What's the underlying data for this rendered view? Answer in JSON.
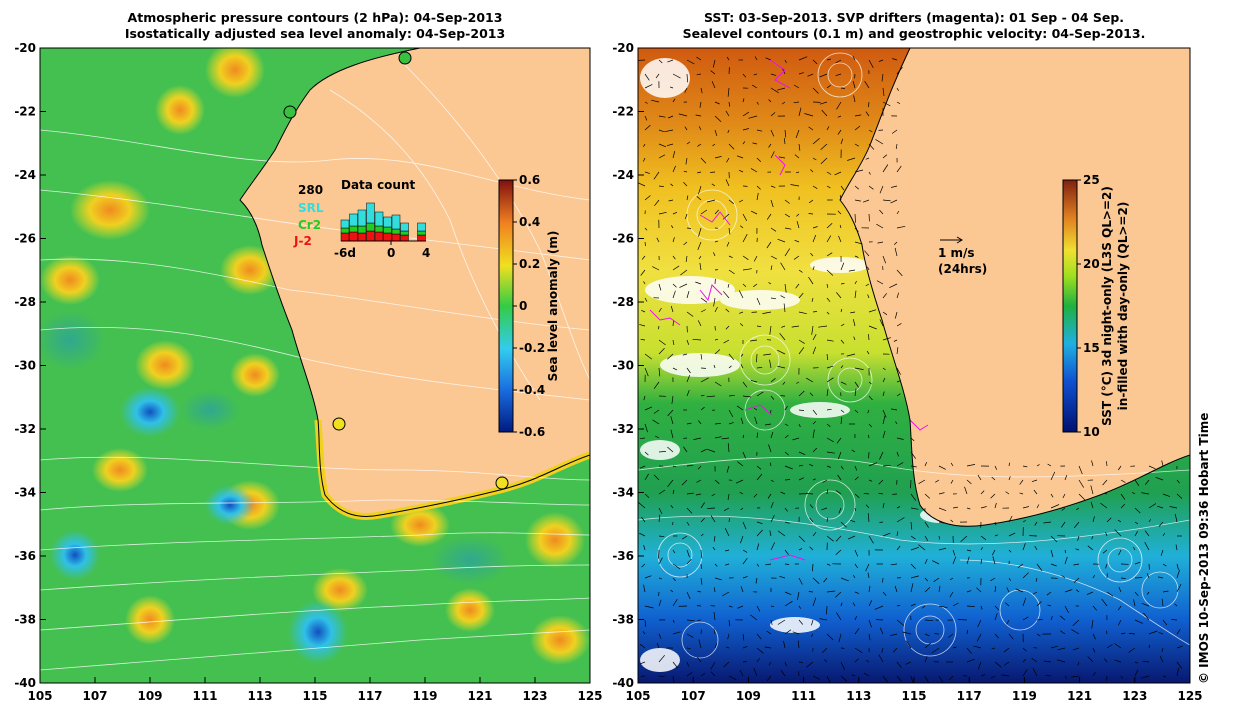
{
  "left_panel": {
    "title_line1": "Atmospheric pressure contours (2 hPa): 04-Sep-2013",
    "title_line2": "Isostatically adjusted sea level anomaly: 04-Sep-2013",
    "x_ticks": [
      "105",
      "107",
      "109",
      "111",
      "113",
      "115",
      "117",
      "119",
      "121",
      "123",
      "125"
    ],
    "y_ticks": [
      "-20",
      "-22",
      "-24",
      "-26",
      "-28",
      "-30",
      "-32",
      "-34",
      "-36",
      "-38",
      "-40"
    ],
    "colorbar": {
      "label": "Sea level anomaly (m)",
      "ticks": [
        "0.6",
        "0.4",
        "0.2",
        "0",
        "-0.2",
        "-0.4",
        "-0.6"
      ]
    },
    "inset": {
      "title": "Data count",
      "total": "280",
      "legend": [
        {
          "name": "SRL",
          "color": "#33dddd"
        },
        {
          "name": "Cr2",
          "color": "#22cc22"
        },
        {
          "name": "J-2",
          "color": "#ee1111"
        }
      ],
      "x_ticks": [
        "-6d",
        "0",
        "4"
      ]
    }
  },
  "right_panel": {
    "title_line1": "SST: 03-Sep-2013. SVP drifters (magenta): 01 Sep - 04 Sep.",
    "title_line2": "Sealevel contours (0.1 m) and geostrophic velocity: 04-Sep-2013.",
    "x_ticks": [
      "105",
      "107",
      "109",
      "111",
      "113",
      "115",
      "117",
      "119",
      "121",
      "123",
      "125"
    ],
    "y_ticks": [
      "-20",
      "-22",
      "-24",
      "-26",
      "-28",
      "-30",
      "-32",
      "-34",
      "-36",
      "-38",
      "-40"
    ],
    "colorbar": {
      "label_line1": "SST (°C) 3d night-only (L3S QL>=2)",
      "label_line2": "in-filled with day-only (QL>=2)",
      "ticks": [
        "25",
        "20",
        "15",
        "10"
      ]
    },
    "velocity_key": {
      "label1": "1 m/s",
      "label2": "(24hrs)"
    }
  },
  "credit": "© IMOS 10-Sep-2013 09:36 Hobart Time"
}
